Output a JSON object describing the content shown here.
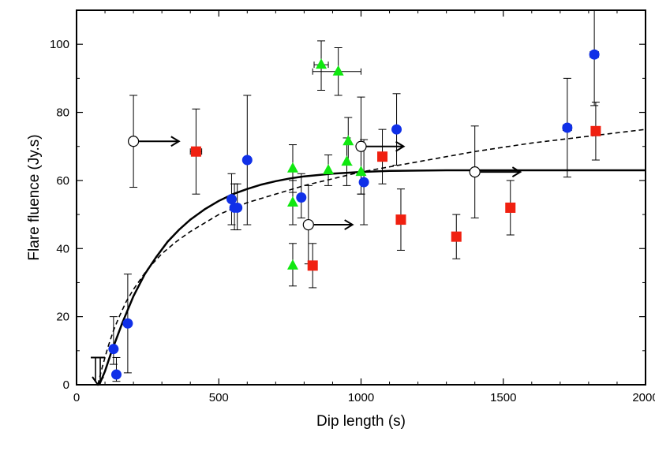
{
  "chart_data": {
    "type": "scatter",
    "title": "",
    "xlabel": "Dip length (s)",
    "ylabel": "Flare fluence (Jy.s)",
    "xlim": [
      0,
      2000
    ],
    "ylim": [
      0,
      110
    ],
    "xticks": [
      0,
      500,
      1000,
      1500,
      2000
    ],
    "xtick_labels": [
      "0",
      "500",
      "1000",
      "1500",
      "2000"
    ],
    "yticks": [
      0,
      20,
      40,
      60,
      80,
      100
    ],
    "ytick_labels": [
      "0",
      "20",
      "40",
      "60",
      "80",
      "100"
    ],
    "grid": false,
    "colors": {
      "blue": "#1030e8",
      "red": "#f02010",
      "green": "#10e810",
      "black": "#000000"
    },
    "series": [
      {
        "name": "blue circles",
        "marker": "circle",
        "color": "#1030e8",
        "points": [
          {
            "x": 130,
            "y": 10.5,
            "ylo": 6,
            "yhi": 20,
            "xerr": 10
          },
          {
            "x": 140,
            "y": 3,
            "ylo": 1,
            "yhi": 8,
            "xerr": 0
          },
          {
            "x": 180,
            "y": 18,
            "ylo": 3.5,
            "yhi": 32.5,
            "xerr": 0
          },
          {
            "x": 545,
            "y": 54.5,
            "ylo": 47,
            "yhi": 62,
            "xerr": 0
          },
          {
            "x": 555,
            "y": 52,
            "ylo": 45.5,
            "yhi": 59,
            "xerr": 0
          },
          {
            "x": 565,
            "y": 52,
            "ylo": 45.5,
            "yhi": 59,
            "xerr": 0
          },
          {
            "x": 600,
            "y": 66,
            "ylo": 47,
            "yhi": 85,
            "xerr": 0
          },
          {
            "x": 790,
            "y": 55,
            "ylo": 49,
            "yhi": 62,
            "xerr": 0
          },
          {
            "x": 1010,
            "y": 59.5,
            "ylo": 47,
            "yhi": 72,
            "xerr": 0
          },
          {
            "x": 1125,
            "y": 75,
            "ylo": 64.5,
            "yhi": 85.5,
            "xerr": 0
          },
          {
            "x": 1725,
            "y": 75.5,
            "ylo": 61,
            "yhi": 90,
            "xerr": 15
          },
          {
            "x": 1820,
            "y": 97,
            "ylo": 82,
            "yhi": 110,
            "xerr": 15
          }
        ]
      },
      {
        "name": "red squares",
        "marker": "square",
        "color": "#f02010",
        "points": [
          {
            "x": 420,
            "y": 68.5,
            "ylo": 56,
            "yhi": 81,
            "xerr": 20
          },
          {
            "x": 830,
            "y": 35,
            "ylo": 28.5,
            "yhi": 41.5,
            "xerr": 0
          },
          {
            "x": 1075,
            "y": 67,
            "ylo": 59,
            "yhi": 75,
            "xerr": 0
          },
          {
            "x": 1140,
            "y": 48.5,
            "ylo": 39.5,
            "yhi": 57.5,
            "xerr": 0
          },
          {
            "x": 1335,
            "y": 43.5,
            "ylo": 37,
            "yhi": 50,
            "xerr": 0
          },
          {
            "x": 1525,
            "y": 52,
            "ylo": 44,
            "yhi": 60,
            "xerr": 0
          },
          {
            "x": 1825,
            "y": 74.5,
            "ylo": 66,
            "yhi": 83,
            "xerr": 0
          }
        ]
      },
      {
        "name": "green triangles",
        "marker": "triangle",
        "color": "#10e810",
        "points": [
          {
            "x": 760,
            "y": 35,
            "ylo": 29,
            "yhi": 41.5,
            "xerr": 0
          },
          {
            "x": 760,
            "y": 53.5,
            "ylo": 47,
            "yhi": 60,
            "xerr": 0
          },
          {
            "x": 760,
            "y": 63.5,
            "ylo": 56.5,
            "yhi": 70.5,
            "xerr": 0
          },
          {
            "x": 860,
            "y": 94,
            "ylo": 86.5,
            "yhi": 101,
            "xerr": 25
          },
          {
            "x": 885,
            "y": 63,
            "ylo": 58.5,
            "yhi": 67.5,
            "xerr": 0
          },
          {
            "x": 920,
            "y": 92,
            "ylo": 85,
            "yhi": 99,
            "xerr": 0
          },
          {
            "x": 950,
            "y": 65.5,
            "ylo": 58.5,
            "yhi": 72.5,
            "xerr": 0
          },
          {
            "x": 955,
            "y": 71.5,
            "ylo": 64.5,
            "yhi": 78.5,
            "xerr": 0
          },
          {
            "x": 1000,
            "y": 62.5,
            "ylo": 56,
            "yhi": 69,
            "xerr": 0
          }
        ],
        "xbar": {
          "y": 92,
          "x0": 830,
          "x1": 1000
        }
      },
      {
        "name": "open circles (lower limits)",
        "marker": "open-circle",
        "color": "#000000",
        "points": [
          {
            "x": 200,
            "y": 71.5,
            "ylo": 58,
            "yhi": 85,
            "arrow_to": 360
          },
          {
            "x": 815,
            "y": 47,
            "ylo": 35.5,
            "yhi": 58.5,
            "arrow_to": 970
          },
          {
            "x": 1000,
            "y": 70,
            "ylo": 56,
            "yhi": 84.5,
            "arrow_to": 1150
          },
          {
            "x": 1400,
            "y": 62.5,
            "ylo": 49,
            "yhi": 76,
            "arrow_to": 1560
          }
        ]
      },
      {
        "name": "upper limit",
        "marker": "down-arrow",
        "color": "#000000",
        "points": [
          {
            "x": 75,
            "y": 8,
            "xerr": 25,
            "down_to": 0
          }
        ]
      }
    ],
    "fits": [
      {
        "name": "solid fit",
        "style": "solid",
        "x": [
          80,
          100,
          120,
          140,
          160,
          180,
          200,
          240,
          280,
          320,
          360,
          400,
          450,
          500,
          550,
          600,
          650,
          700,
          750,
          800,
          900,
          1000,
          1100,
          1200,
          1300,
          1400,
          1500,
          1600,
          1700,
          1800,
          1900,
          2000
        ],
        "y": [
          0,
          4,
          9,
          13.5,
          18,
          22,
          26,
          32.5,
          37.5,
          42,
          45.5,
          48.5,
          51.5,
          54,
          56,
          57.5,
          58.8,
          59.8,
          60.6,
          61.2,
          62,
          62.5,
          62.8,
          62.9,
          63,
          63,
          63,
          63,
          63,
          63,
          63,
          63
        ]
      },
      {
        "name": "dashed fit",
        "style": "dashed",
        "x": [
          75,
          90,
          110,
          130,
          150,
          175,
          200,
          250,
          300,
          350,
          400,
          450,
          500,
          600,
          700,
          800,
          900,
          1000,
          1200,
          1400,
          1600,
          1800,
          2000
        ],
        "y": [
          0,
          5,
          11,
          16,
          20,
          24.5,
          28,
          34,
          38.5,
          42,
          45,
          47.5,
          50,
          53.5,
          56,
          58.5,
          60.5,
          62.5,
          65.5,
          68.5,
          71,
          73,
          75
        ]
      }
    ]
  }
}
